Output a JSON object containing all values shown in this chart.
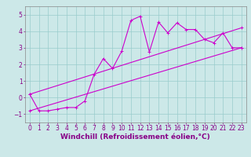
{
  "background_color": "#cce8e8",
  "grid_color": "#99cccc",
  "line_color": "#cc00cc",
  "markersize": 3,
  "linewidth": 0.8,
  "xlim": [
    -0.5,
    23.5
  ],
  "ylim": [
    -1.5,
    5.5
  ],
  "yticks": [
    -1,
    0,
    1,
    2,
    3,
    4,
    5
  ],
  "xticks": [
    0,
    1,
    2,
    3,
    4,
    5,
    6,
    7,
    8,
    9,
    10,
    11,
    12,
    13,
    14,
    15,
    16,
    17,
    18,
    19,
    20,
    21,
    22,
    23
  ],
  "xlabel": "Windchill (Refroidissement éolien,°C)",
  "xlabel_fontsize": 6.5,
  "tick_fontsize": 5.5,
  "series1_x": [
    0,
    1,
    2,
    3,
    4,
    5,
    6,
    7,
    8,
    9,
    10,
    11,
    12,
    13,
    14,
    15,
    16,
    17,
    18,
    19,
    20,
    21,
    22,
    23
  ],
  "series1_y": [
    0.2,
    -0.8,
    -0.8,
    -0.7,
    -0.6,
    -0.6,
    -0.2,
    1.4,
    2.35,
    1.75,
    2.8,
    4.65,
    4.9,
    2.75,
    4.55,
    3.9,
    4.5,
    4.1,
    4.1,
    3.5,
    3.3,
    3.9,
    3.0,
    3.0
  ],
  "series2_x": [
    0,
    23
  ],
  "series2_y": [
    0.2,
    4.2
  ],
  "series3_x": [
    0,
    23
  ],
  "series3_y": [
    -0.8,
    3.0
  ]
}
